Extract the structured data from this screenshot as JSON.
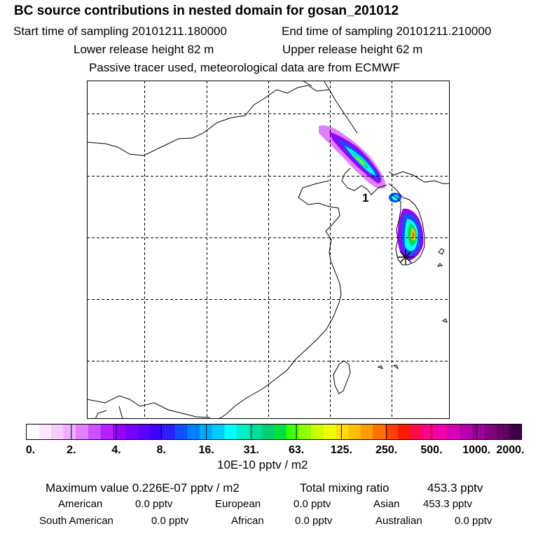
{
  "header": {
    "title": "BC  source contributions in nested domain for gosan_201012",
    "start_label": "Start time of sampling 20101211.180000",
    "end_label": "End time of sampling 20101211.210000",
    "lower_label": "Lower release height   82 m",
    "upper_label": "Upper release height   62 m",
    "note": "Passive tracer used, meteorological data are from ECMWF"
  },
  "map": {
    "cluster_label": "1",
    "receptor_marker": "asterisk-icon"
  },
  "colorbar": {
    "colors": [
      "#ffffff",
      "#fbe8ff",
      "#f5ccff",
      "#eeb0ff",
      "#de80ff",
      "#cc50ff",
      "#b420ff",
      "#9a00ff",
      "#7700ff",
      "#5a00ff",
      "#3f00ff",
      "#2a20ff",
      "#1050ff",
      "#0080ff",
      "#00a8ff",
      "#00ccff",
      "#00ffff",
      "#00f0c8",
      "#00e09a",
      "#00d070",
      "#00e040",
      "#40ff00",
      "#90ff00",
      "#ccff00",
      "#f0ff00",
      "#ffe000",
      "#ffc000",
      "#ff9c00",
      "#ff7000",
      "#ff4000",
      "#ff1800",
      "#ff0a50",
      "#ff0090",
      "#f000a8",
      "#d800b4",
      "#b800b0",
      "#9c0098",
      "#80007e",
      "#640064",
      "#3c0046"
    ],
    "ticks": [
      "0.",
      "2.",
      "4.",
      "8.",
      "16.",
      "31.",
      "63.",
      "125.",
      "250.",
      "500.",
      "1000.",
      "2000."
    ],
    "unit": "10E-10 pptv / m2"
  },
  "stats": {
    "max_label": "Maximum value  0.226E-07 pptv / m2",
    "total_label": "Total mixing ratio",
    "total_value": "453.3 pptv",
    "sources": [
      {
        "name": "American",
        "value": "0.0 pptv"
      },
      {
        "name": "European",
        "value": "0.0 pptv"
      },
      {
        "name": "Asian",
        "value": "453.3 pptv"
      },
      {
        "name": "South American",
        "value": "0.0 pptv"
      },
      {
        "name": "African",
        "value": "0.0 pptv"
      },
      {
        "name": "Australian",
        "value": "0.0 pptv"
      }
    ]
  }
}
